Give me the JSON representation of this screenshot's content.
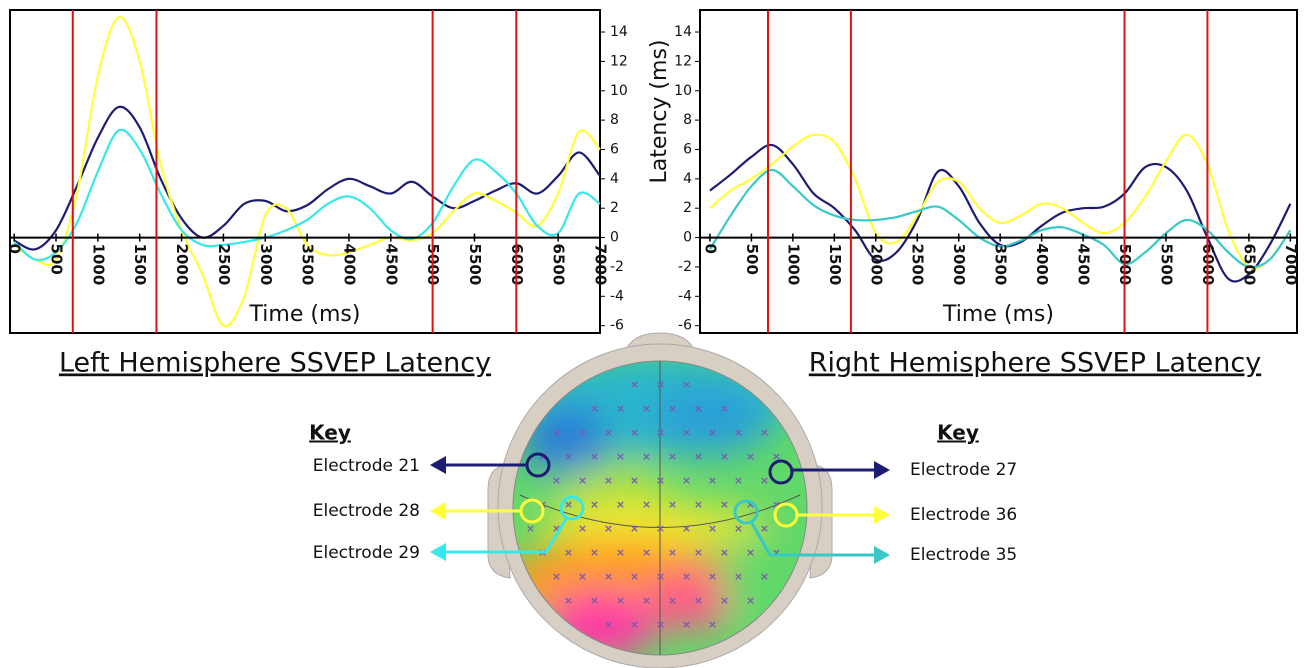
{
  "chart_data": [
    {
      "type": "line",
      "title": "Left Hemisphere SSVEP Latency",
      "x_label": "Time (ms)",
      "legend_title": "Key",
      "x": [
        0,
        250,
        500,
        750,
        1000,
        1250,
        1500,
        1750,
        2000,
        2250,
        2500,
        2750,
        3000,
        3250,
        3500,
        3750,
        4000,
        4250,
        4500,
        4750,
        5000,
        5250,
        5500,
        5750,
        6000,
        6250,
        6500,
        6750,
        7000
      ],
      "series": [
        {
          "name": "Electrode 21",
          "color": "#1c1c72",
          "values": [
            -0.2,
            -0.8,
            0.5,
            3.5,
            6.8,
            8.9,
            7.5,
            4,
            1.3,
            0,
            0.8,
            2.3,
            2.5,
            1.8,
            2.2,
            3.3,
            4,
            3.5,
            3,
            3.8,
            2.8,
            2,
            2.5,
            3.2,
            3.7,
            3,
            4.2,
            5.8,
            4.2
          ]
        },
        {
          "name": "Electrode 28",
          "color": "#ffff3a",
          "values": [
            -0.5,
            -1.5,
            -1.5,
            3,
            11,
            15,
            12,
            5,
            0.5,
            -2.5,
            -6,
            -4,
            1.5,
            2,
            -0.5,
            -1.2,
            -1,
            -0.5,
            0,
            -0.2,
            0.3,
            1.8,
            3,
            2.5,
            1.7,
            0.8,
            3,
            7.2,
            6
          ]
        },
        {
          "name": "Electrode 29",
          "color": "#38e8e8",
          "values": [
            -0.3,
            -1.5,
            -1,
            1,
            4.5,
            7.3,
            6,
            3,
            0.5,
            -0.5,
            -0.5,
            -0.3,
            0,
            0.5,
            1.2,
            2.3,
            2.8,
            2,
            0.5,
            -0.1,
            1,
            3.5,
            5.3,
            4.5,
            3,
            0.8,
            0.3,
            3,
            2.3
          ]
        }
      ],
      "xlim": [
        -50,
        7000
      ],
      "xticks": [
        0,
        500,
        1000,
        1500,
        2000,
        2500,
        3000,
        3500,
        4000,
        4500,
        5000,
        5500,
        6000,
        6500,
        7000
      ],
      "ylim": [
        -6.5,
        15.5
      ],
      "yticks": [
        -6,
        -4,
        -2,
        0,
        2,
        4,
        6,
        8,
        10,
        12,
        14
      ],
      "vlines": [
        700,
        1700,
        5000,
        6000
      ],
      "vline_color": "#e01010"
    },
    {
      "type": "line",
      "title": "Right Hemisphere SSVEP Latency",
      "x_label": "Time (ms)",
      "y_label": "Latency (ms)",
      "legend_title": "Key",
      "x": [
        0,
        250,
        500,
        750,
        1000,
        1250,
        1500,
        1750,
        2000,
        2250,
        2500,
        2750,
        3000,
        3250,
        3500,
        3750,
        4000,
        4250,
        4500,
        4750,
        5000,
        5250,
        5500,
        5750,
        6000,
        6250,
        6500,
        6750,
        7000
      ],
      "series": [
        {
          "name": "Electrode 27",
          "color": "#1c1c72",
          "values": [
            3.2,
            4.3,
            5.5,
            6.3,
            5,
            3,
            2,
            0.5,
            -1.5,
            -1,
            1.2,
            4.5,
            3.5,
            1,
            -0.5,
            -0.3,
            0.8,
            1.7,
            2,
            2.1,
            3,
            4.8,
            4.8,
            3.2,
            0,
            -2.8,
            -2.5,
            -0.5,
            2.3
          ]
        },
        {
          "name": "Electrode 36",
          "color": "#ffff3a",
          "values": [
            2,
            3.2,
            4,
            5,
            6.2,
            7,
            6.5,
            4,
            0.3,
            -0.3,
            1.5,
            3.8,
            3.8,
            2,
            1,
            1.5,
            2.3,
            2,
            1,
            0.3,
            1,
            2.8,
            5.2,
            7,
            5,
            0.5,
            -2,
            -1.5,
            0.5
          ]
        },
        {
          "name": "Electrode 35",
          "color": "#38c8c8",
          "values": [
            -0.8,
            1.5,
            3.5,
            4.6,
            3.5,
            2.2,
            1.5,
            1.2,
            1.2,
            1.4,
            1.8,
            2.1,
            1.2,
            0,
            -0.6,
            -0.2,
            0.5,
            0.7,
            0.2,
            -0.5,
            -1.8,
            -1,
            0.3,
            1.2,
            0.5,
            -1,
            -2,
            -1.5,
            0.5
          ]
        }
      ],
      "xlim": [
        -120,
        7080
      ],
      "xticks": [
        0,
        500,
        1000,
        1500,
        2000,
        2500,
        3000,
        3500,
        4000,
        4500,
        5000,
        5500,
        6000,
        6500,
        7000
      ],
      "ylim": [
        -6.5,
        15.5
      ],
      "yticks": [
        -6,
        -4,
        -2,
        0,
        2,
        4,
        6,
        8,
        10,
        12,
        14
      ],
      "vlines": [
        700,
        1700,
        5000,
        6000
      ],
      "vline_color": "#e01010"
    }
  ]
}
